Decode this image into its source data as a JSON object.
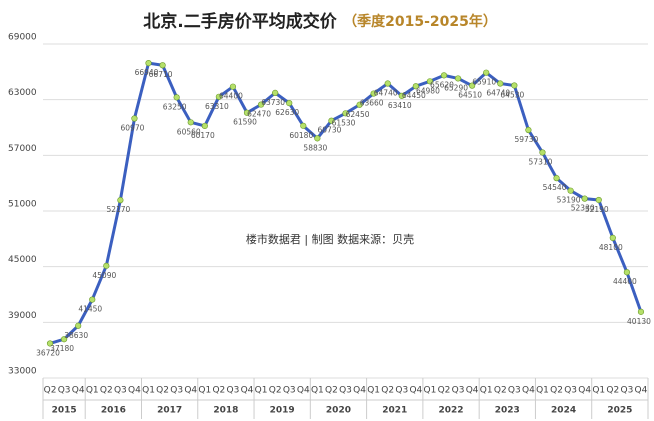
{
  "chart_data": {
    "type": "line",
    "title": "北京.二手房价平均成交价",
    "subtitle": "（季度2015-2025年）",
    "annotation": "楼市数据君 | 制图   数据来源：贝壳",
    "categories": [
      "Q2",
      "Q3",
      "Q4",
      "Q1",
      "Q2",
      "Q3",
      "Q4",
      "Q1",
      "Q2",
      "Q3",
      "Q4",
      "Q1",
      "Q2",
      "Q3",
      "Q4",
      "Q1",
      "Q2",
      "Q3",
      "Q4",
      "Q1",
      "Q2",
      "Q3",
      "Q4",
      "Q1",
      "Q2",
      "Q3",
      "Q4",
      "Q1",
      "Q2",
      "Q3",
      "Q4",
      "Q1",
      "Q2",
      "Q3",
      "Q4",
      "Q1",
      "Q2",
      "Q3",
      "Q4",
      "Q1",
      "Q2",
      "Q3",
      "Q4"
    ],
    "years": [
      "2015",
      "2016",
      "2017",
      "2018",
      "2019",
      "2020",
      "2021",
      "2022",
      "2023",
      "2024",
      "2025"
    ],
    "series": [
      {
        "name": "平均成交价",
        "color": "#3b5fc0",
        "marker_color": "#b5e06a",
        "values": [
          36720,
          37180,
          38630,
          41450,
          45090,
          52170,
          60970,
          66940,
          66710,
          63250,
          60560,
          60170,
          63310,
          64400,
          61590,
          62470,
          63730,
          62630,
          60180,
          58830,
          60730,
          61530,
          62450,
          63660,
          64740,
          63410,
          64450,
          64980,
          65620,
          65290,
          64510,
          65910,
          64740,
          64530,
          59730,
          57310,
          54540,
          53190,
          52330,
          52190,
          48100,
          44400,
          40130
        ]
      }
    ],
    "ylim": [
      33000,
      69000
    ],
    "yticks": [
      33000,
      39000,
      45000,
      51000,
      57000,
      63000,
      69000
    ],
    "grid": true
  }
}
